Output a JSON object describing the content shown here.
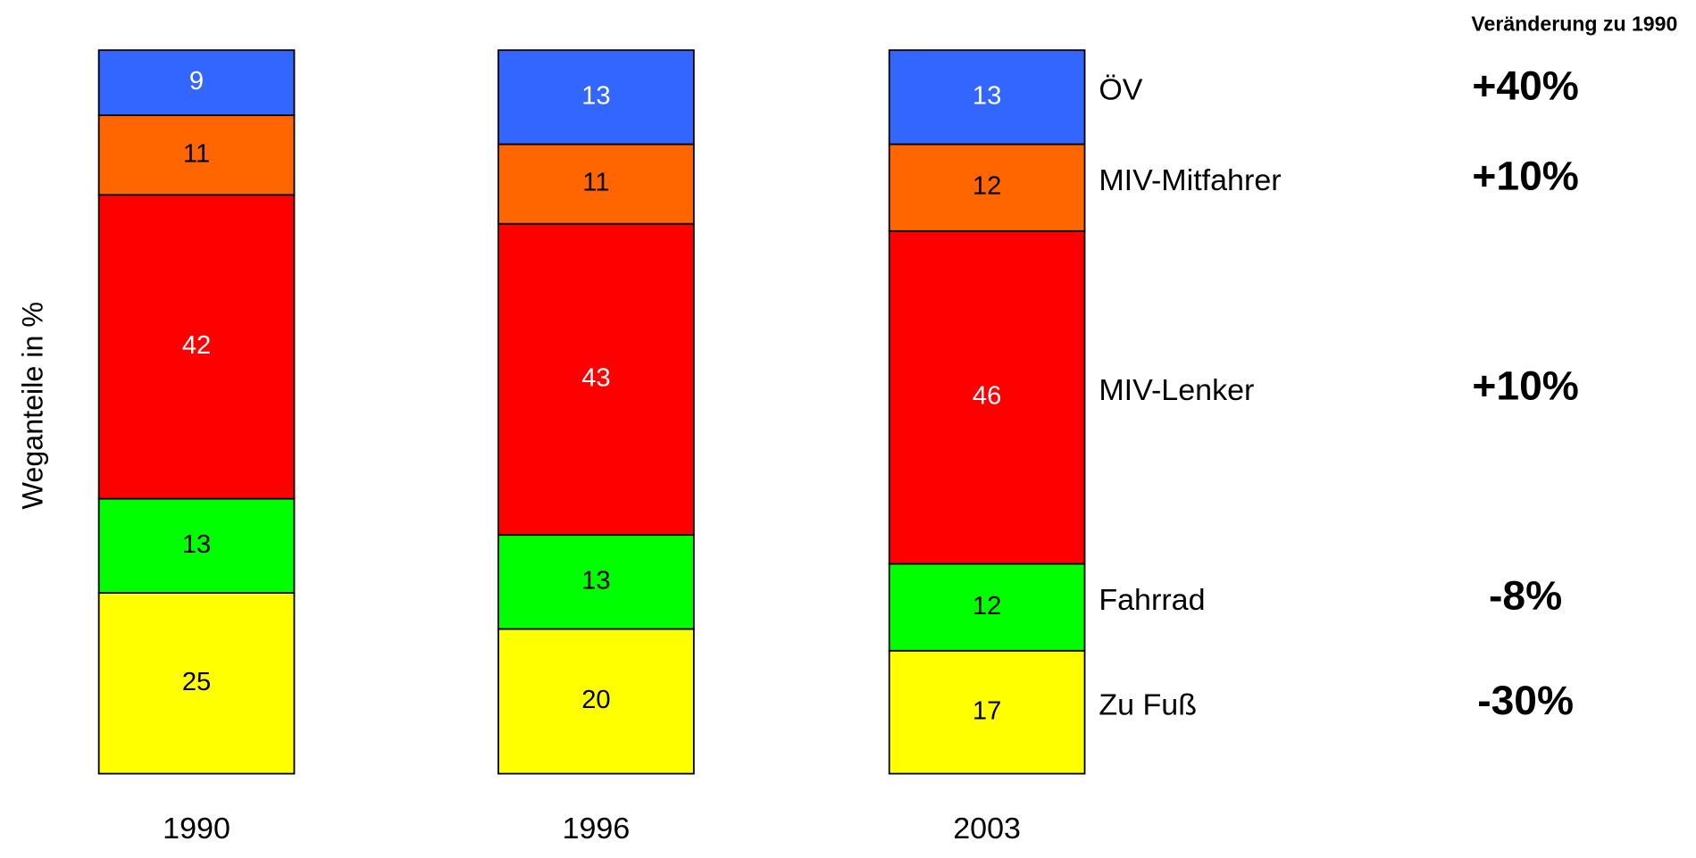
{
  "chart_data": {
    "type": "stacked_bar",
    "y_label": "Weganteile in %",
    "categories": [
      "1990",
      "1996",
      "2003"
    ],
    "change_header": "Veränderung zu 1990",
    "series": [
      {
        "name": "Zu Fuß",
        "color": "#ffff00",
        "label_color": "#000000",
        "values": [
          25,
          20,
          17
        ],
        "change": "-30%"
      },
      {
        "name": "Fahrrad",
        "color": "#00ff00",
        "label_color": "#000000",
        "values": [
          13,
          13,
          12
        ],
        "change": "-8%"
      },
      {
        "name": "MIV-Lenker",
        "color": "#ff0000",
        "label_color": "#ffffff",
        "values": [
          42,
          43,
          46
        ],
        "change": "+10%"
      },
      {
        "name": "MIV-Mitfahrer",
        "color": "#ff6600",
        "label_color": "#000000",
        "values": [
          11,
          11,
          12
        ],
        "change": "+10%"
      },
      {
        "name": "ÖV",
        "color": "#3366ff",
        "label_color": "#ffffff",
        "values": [
          9,
          13,
          13
        ],
        "change": "+40%"
      }
    ]
  }
}
